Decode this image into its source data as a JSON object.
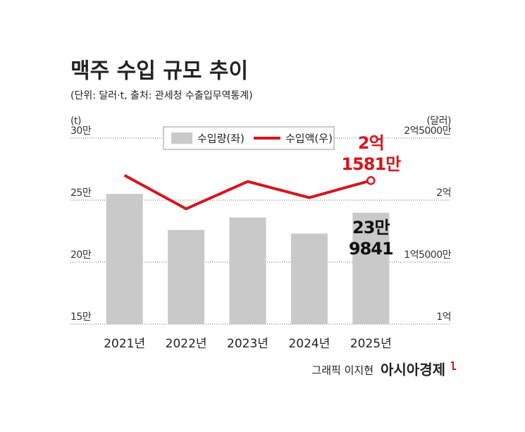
{
  "title": "맥주 수입 규모 추이",
  "subtitle": "(단위: 달러·t, 출처: 관세청 수출입무역통계)",
  "credit": "그래픽 이지현",
  "publisher": "아시아경제",
  "chart_data": {
    "type": "bar-line",
    "y_axis_label": "(t)",
    "y2_axis_label": "(달러)",
    "categories": [
      "2021년",
      "2022년",
      "2023년",
      "2024년",
      "2025년"
    ],
    "ylim": [
      150000,
      300000
    ],
    "yticks": [
      {
        "value": 150000,
        "label": "15만"
      },
      {
        "value": 200000,
        "label": "20만"
      },
      {
        "value": 250000,
        "label": "25만"
      },
      {
        "value": 300000,
        "label": "30만"
      }
    ],
    "y2lim": [
      100000000,
      250000000
    ],
    "y2ticks": [
      {
        "value": 100000000,
        "label": "1억"
      },
      {
        "value": 150000000,
        "label": "1억5000만"
      },
      {
        "value": 200000000,
        "label": "2억"
      },
      {
        "value": 250000000,
        "label": "2억5000만"
      }
    ],
    "grid": true,
    "series": [
      {
        "name": "수입량(좌)",
        "type": "bar",
        "color": "#c9c9c9",
        "values": [
          255000,
          226000,
          236000,
          223000,
          239841
        ],
        "value_labels": [
          null,
          null,
          null,
          null,
          [
            "23만",
            "9841"
          ]
        ]
      },
      {
        "name": "수입액(우)",
        "type": "line",
        "axis": "y2",
        "color": "#d7141e",
        "values": [
          220000000,
          193000000,
          215000000,
          202000000,
          215810000
        ],
        "value_labels": [
          null,
          null,
          null,
          null,
          [
            "2억",
            "1581만"
          ]
        ]
      }
    ]
  }
}
